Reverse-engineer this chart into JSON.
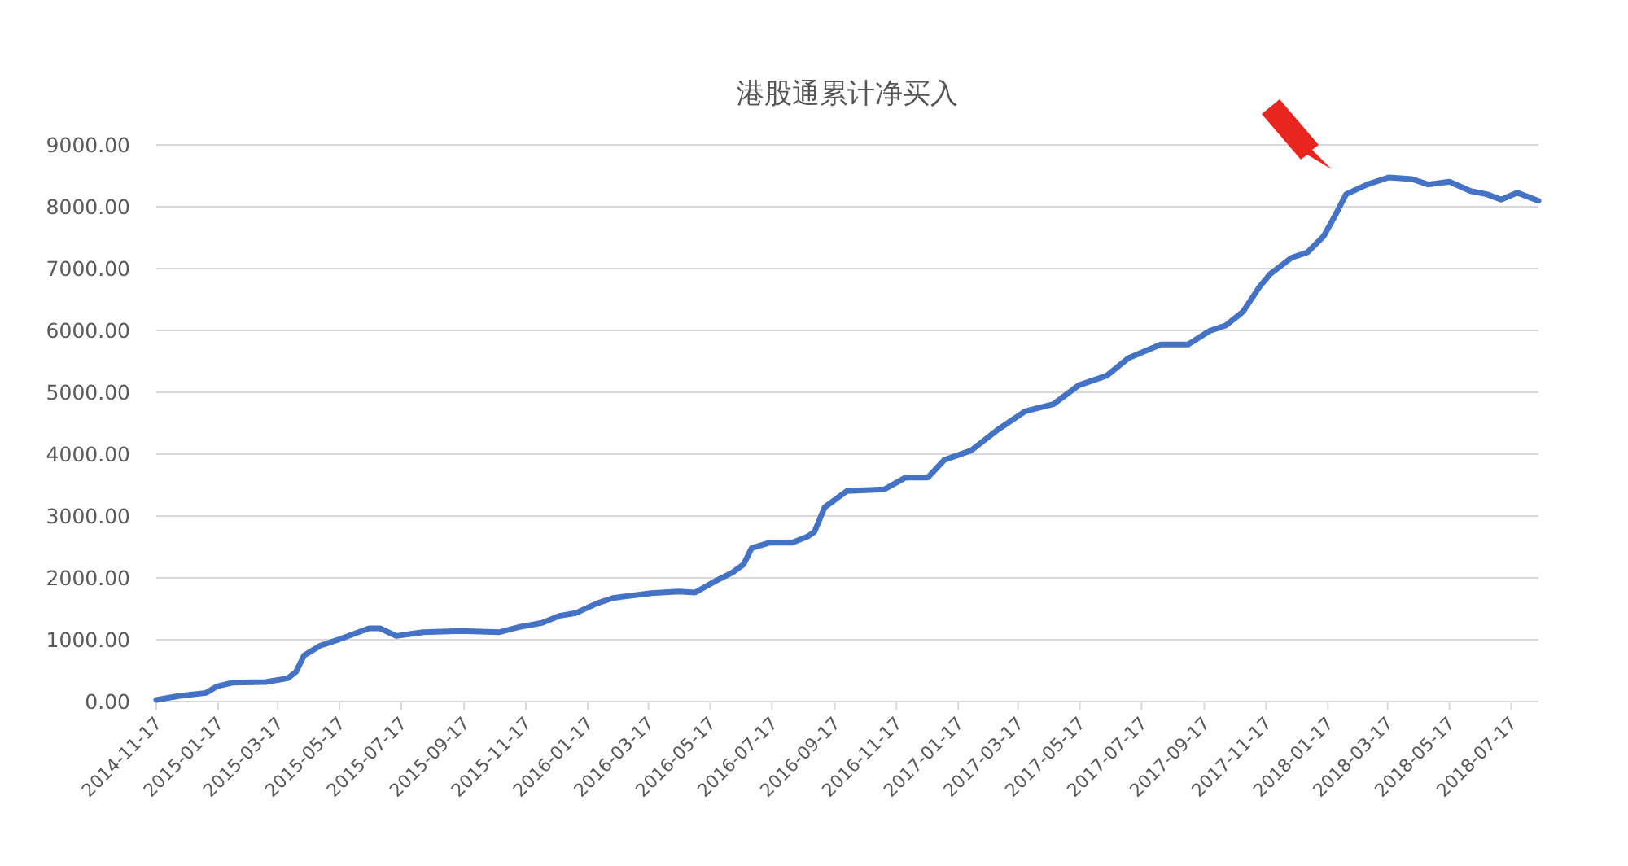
{
  "chart_data": {
    "type": "line",
    "title": "港股通累计净买入",
    "color": "#4472c4",
    "grid": "y",
    "legend": false,
    "marker": "none",
    "line_style": "solid",
    "x": [
      "2014-11-17",
      "2014-12-09",
      "2015-01-05",
      "2015-01-16",
      "2015-02-01",
      "2015-03-05",
      "2015-03-27",
      "2015-04-04",
      "2015-04-12",
      "2015-04-28",
      "2015-05-14",
      "2015-06-15",
      "2015-06-26",
      "2015-07-12",
      "2015-08-08",
      "2015-09-14",
      "2015-10-22",
      "2015-11-12",
      "2015-12-03",
      "2015-12-20",
      "2016-01-05",
      "2016-01-26",
      "2016-02-11",
      "2016-03-20",
      "2016-04-16",
      "2016-05-02",
      "2016-05-23",
      "2016-06-08",
      "2016-06-19",
      "2016-06-27",
      "2016-07-15",
      "2016-08-06",
      "2016-08-22",
      "2016-08-28",
      "2016-09-07",
      "2016-09-29",
      "2016-11-05",
      "2016-11-26",
      "2016-12-18",
      "2017-01-03",
      "2017-01-30",
      "2017-02-25",
      "2017-03-24",
      "2017-04-21",
      "2017-05-16",
      "2017-06-13",
      "2017-07-04",
      "2017-08-05",
      "2017-09-01",
      "2017-09-22",
      "2017-10-08",
      "2017-10-25",
      "2017-11-10",
      "2017-11-21",
      "2017-12-12",
      "2017-12-28",
      "2018-01-13",
      "2018-01-24",
      "2018-02-04",
      "2018-02-25",
      "2018-03-18",
      "2018-04-10",
      "2018-04-26",
      "2018-05-17",
      "2018-06-07",
      "2018-06-23",
      "2018-07-07",
      "2018-07-23",
      "2018-08-13"
    ],
    "values": [
      26,
      88,
      140,
      246,
      307,
      316,
      377,
      482,
      746,
      904,
      991,
      1184,
      1184,
      1061,
      1123,
      1140,
      1123,
      1211,
      1272,
      1386,
      1430,
      1588,
      1675,
      1754,
      1781,
      1763,
      1956,
      2088,
      2219,
      2482,
      2570,
      2570,
      2675,
      2746,
      3140,
      3404,
      3430,
      3623,
      3623,
      3904,
      4061,
      4395,
      4693,
      4807,
      5114,
      5272,
      5553,
      5772,
      5772,
      5991,
      6079,
      6298,
      6693,
      6912,
      7175,
      7263,
      7526,
      7851,
      8202,
      8360,
      8474,
      8447,
      8360,
      8404,
      8254,
      8202,
      8114,
      8228,
      8096
    ],
    "xlim": [
      "2014-11-17",
      "2018-08-13"
    ],
    "xticks": [
      "2014-11-17",
      "2015-01-17",
      "2015-03-17",
      "2015-05-17",
      "2015-07-17",
      "2015-09-17",
      "2015-11-17",
      "2016-01-17",
      "2016-03-17",
      "2016-05-17",
      "2016-07-17",
      "2016-09-17",
      "2016-11-17",
      "2017-01-17",
      "2017-03-17",
      "2017-05-17",
      "2017-07-17",
      "2017-09-17",
      "2017-11-17",
      "2018-01-17",
      "2018-03-17",
      "2018-05-17",
      "2018-07-17"
    ],
    "ylim": [
      0,
      9000
    ],
    "yticks": [
      {
        "value": 0,
        "label": "0.00"
      },
      {
        "value": 1000,
        "label": "1000.00"
      },
      {
        "value": 2000,
        "label": "2000.00"
      },
      {
        "value": 3000,
        "label": "3000.00"
      },
      {
        "value": 4000,
        "label": "4000.00"
      },
      {
        "value": 5000,
        "label": "5000.00"
      },
      {
        "value": 6000,
        "label": "6000.00"
      },
      {
        "value": 7000,
        "label": "7000.00"
      },
      {
        "value": 8000,
        "label": "8000.00"
      },
      {
        "value": 9000,
        "label": "9000.00"
      }
    ]
  }
}
